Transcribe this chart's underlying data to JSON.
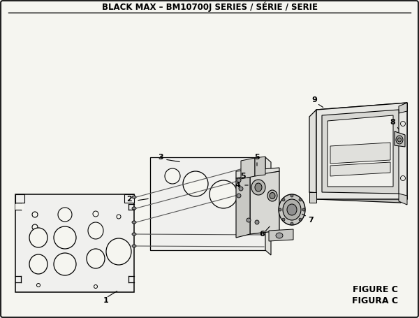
{
  "title": "BLACK MAX – BM10700J SERIES / SÉRIE / SERIE",
  "figure_label": "FIGURE C",
  "figura_label": "FIGURA C",
  "bg_color": "#f5f5f0",
  "border_color": "#222222",
  "title_fontsize": 8.5,
  "fig_label_fontsize": 9
}
